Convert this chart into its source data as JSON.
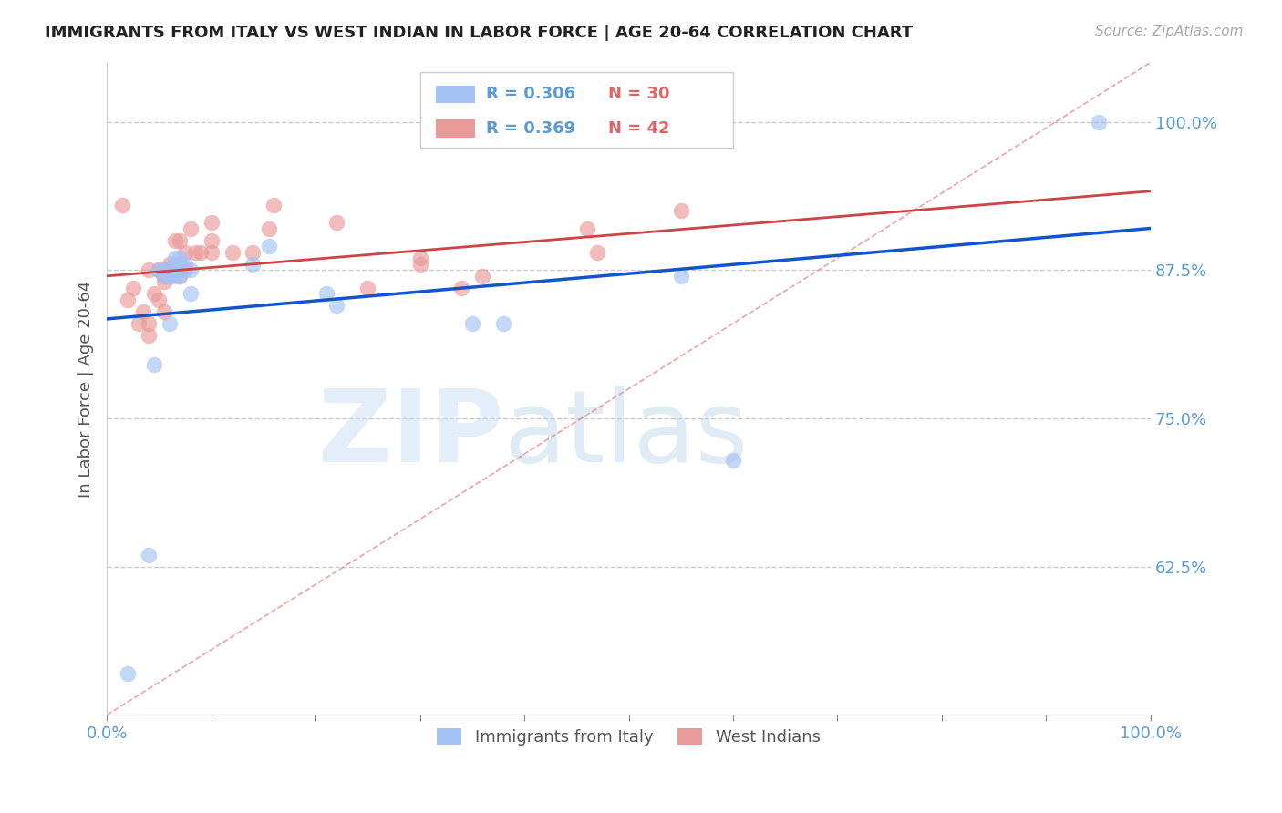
{
  "title": "IMMIGRANTS FROM ITALY VS WEST INDIAN IN LABOR FORCE | AGE 20-64 CORRELATION CHART",
  "source": "Source: ZipAtlas.com",
  "ylabel": "In Labor Force | Age 20-64",
  "xlim": [
    0.0,
    1.0
  ],
  "ylim": [
    0.5,
    1.05
  ],
  "yticks": [
    0.625,
    0.75,
    0.875,
    1.0
  ],
  "ytick_labels": [
    "62.5%",
    "75.0%",
    "87.5%",
    "100.0%"
  ],
  "xticks": [
    0.0,
    0.1,
    0.2,
    0.3,
    0.4,
    0.5,
    0.6,
    0.7,
    0.8,
    0.9,
    1.0
  ],
  "xtick_labels_show": [
    "0.0%",
    "",
    "",
    "",
    "",
    "",
    "",
    "",
    "",
    "",
    "100.0%"
  ],
  "italy_R": "0.306",
  "italy_N": "30",
  "west_R": "0.369",
  "west_N": "42",
  "italy_color": "#a4c2f4",
  "west_color": "#ea9999",
  "italy_line_color": "#1155cc",
  "west_line_color": "#cc4444",
  "diag_color": "#e06666",
  "legend_italy": "Immigrants from Italy",
  "legend_west": "West Indians",
  "italy_x": [
    0.02,
    0.04,
    0.045,
    0.05,
    0.055,
    0.055,
    0.06,
    0.06,
    0.065,
    0.065,
    0.065,
    0.065,
    0.07,
    0.07,
    0.07,
    0.075,
    0.075,
    0.08,
    0.08,
    0.14,
    0.155,
    0.21,
    0.22,
    0.35,
    0.38,
    0.55,
    0.6,
    0.95,
    0.07,
    0.06
  ],
  "italy_y": [
    0.535,
    0.635,
    0.795,
    0.875,
    0.875,
    0.87,
    0.875,
    0.87,
    0.87,
    0.875,
    0.88,
    0.885,
    0.885,
    0.88,
    0.875,
    0.88,
    0.875,
    0.875,
    0.855,
    0.88,
    0.895,
    0.855,
    0.845,
    0.83,
    0.83,
    0.87,
    0.715,
    1.0,
    0.87,
    0.83
  ],
  "west_x": [
    0.015,
    0.025,
    0.03,
    0.035,
    0.04,
    0.04,
    0.04,
    0.045,
    0.05,
    0.05,
    0.055,
    0.055,
    0.055,
    0.055,
    0.06,
    0.06,
    0.06,
    0.065,
    0.065,
    0.07,
    0.07,
    0.075,
    0.08,
    0.085,
    0.09,
    0.1,
    0.1,
    0.1,
    0.12,
    0.14,
    0.155,
    0.16,
    0.22,
    0.25,
    0.3,
    0.3,
    0.34,
    0.36,
    0.46,
    0.47,
    0.55,
    0.02
  ],
  "west_y": [
    0.93,
    0.86,
    0.83,
    0.84,
    0.82,
    0.83,
    0.875,
    0.855,
    0.875,
    0.85,
    0.84,
    0.865,
    0.87,
    0.875,
    0.87,
    0.875,
    0.88,
    0.875,
    0.9,
    0.87,
    0.9,
    0.89,
    0.91,
    0.89,
    0.89,
    0.89,
    0.9,
    0.915,
    0.89,
    0.89,
    0.91,
    0.93,
    0.915,
    0.86,
    0.88,
    0.885,
    0.86,
    0.87,
    0.91,
    0.89,
    0.925,
    0.85
  ]
}
